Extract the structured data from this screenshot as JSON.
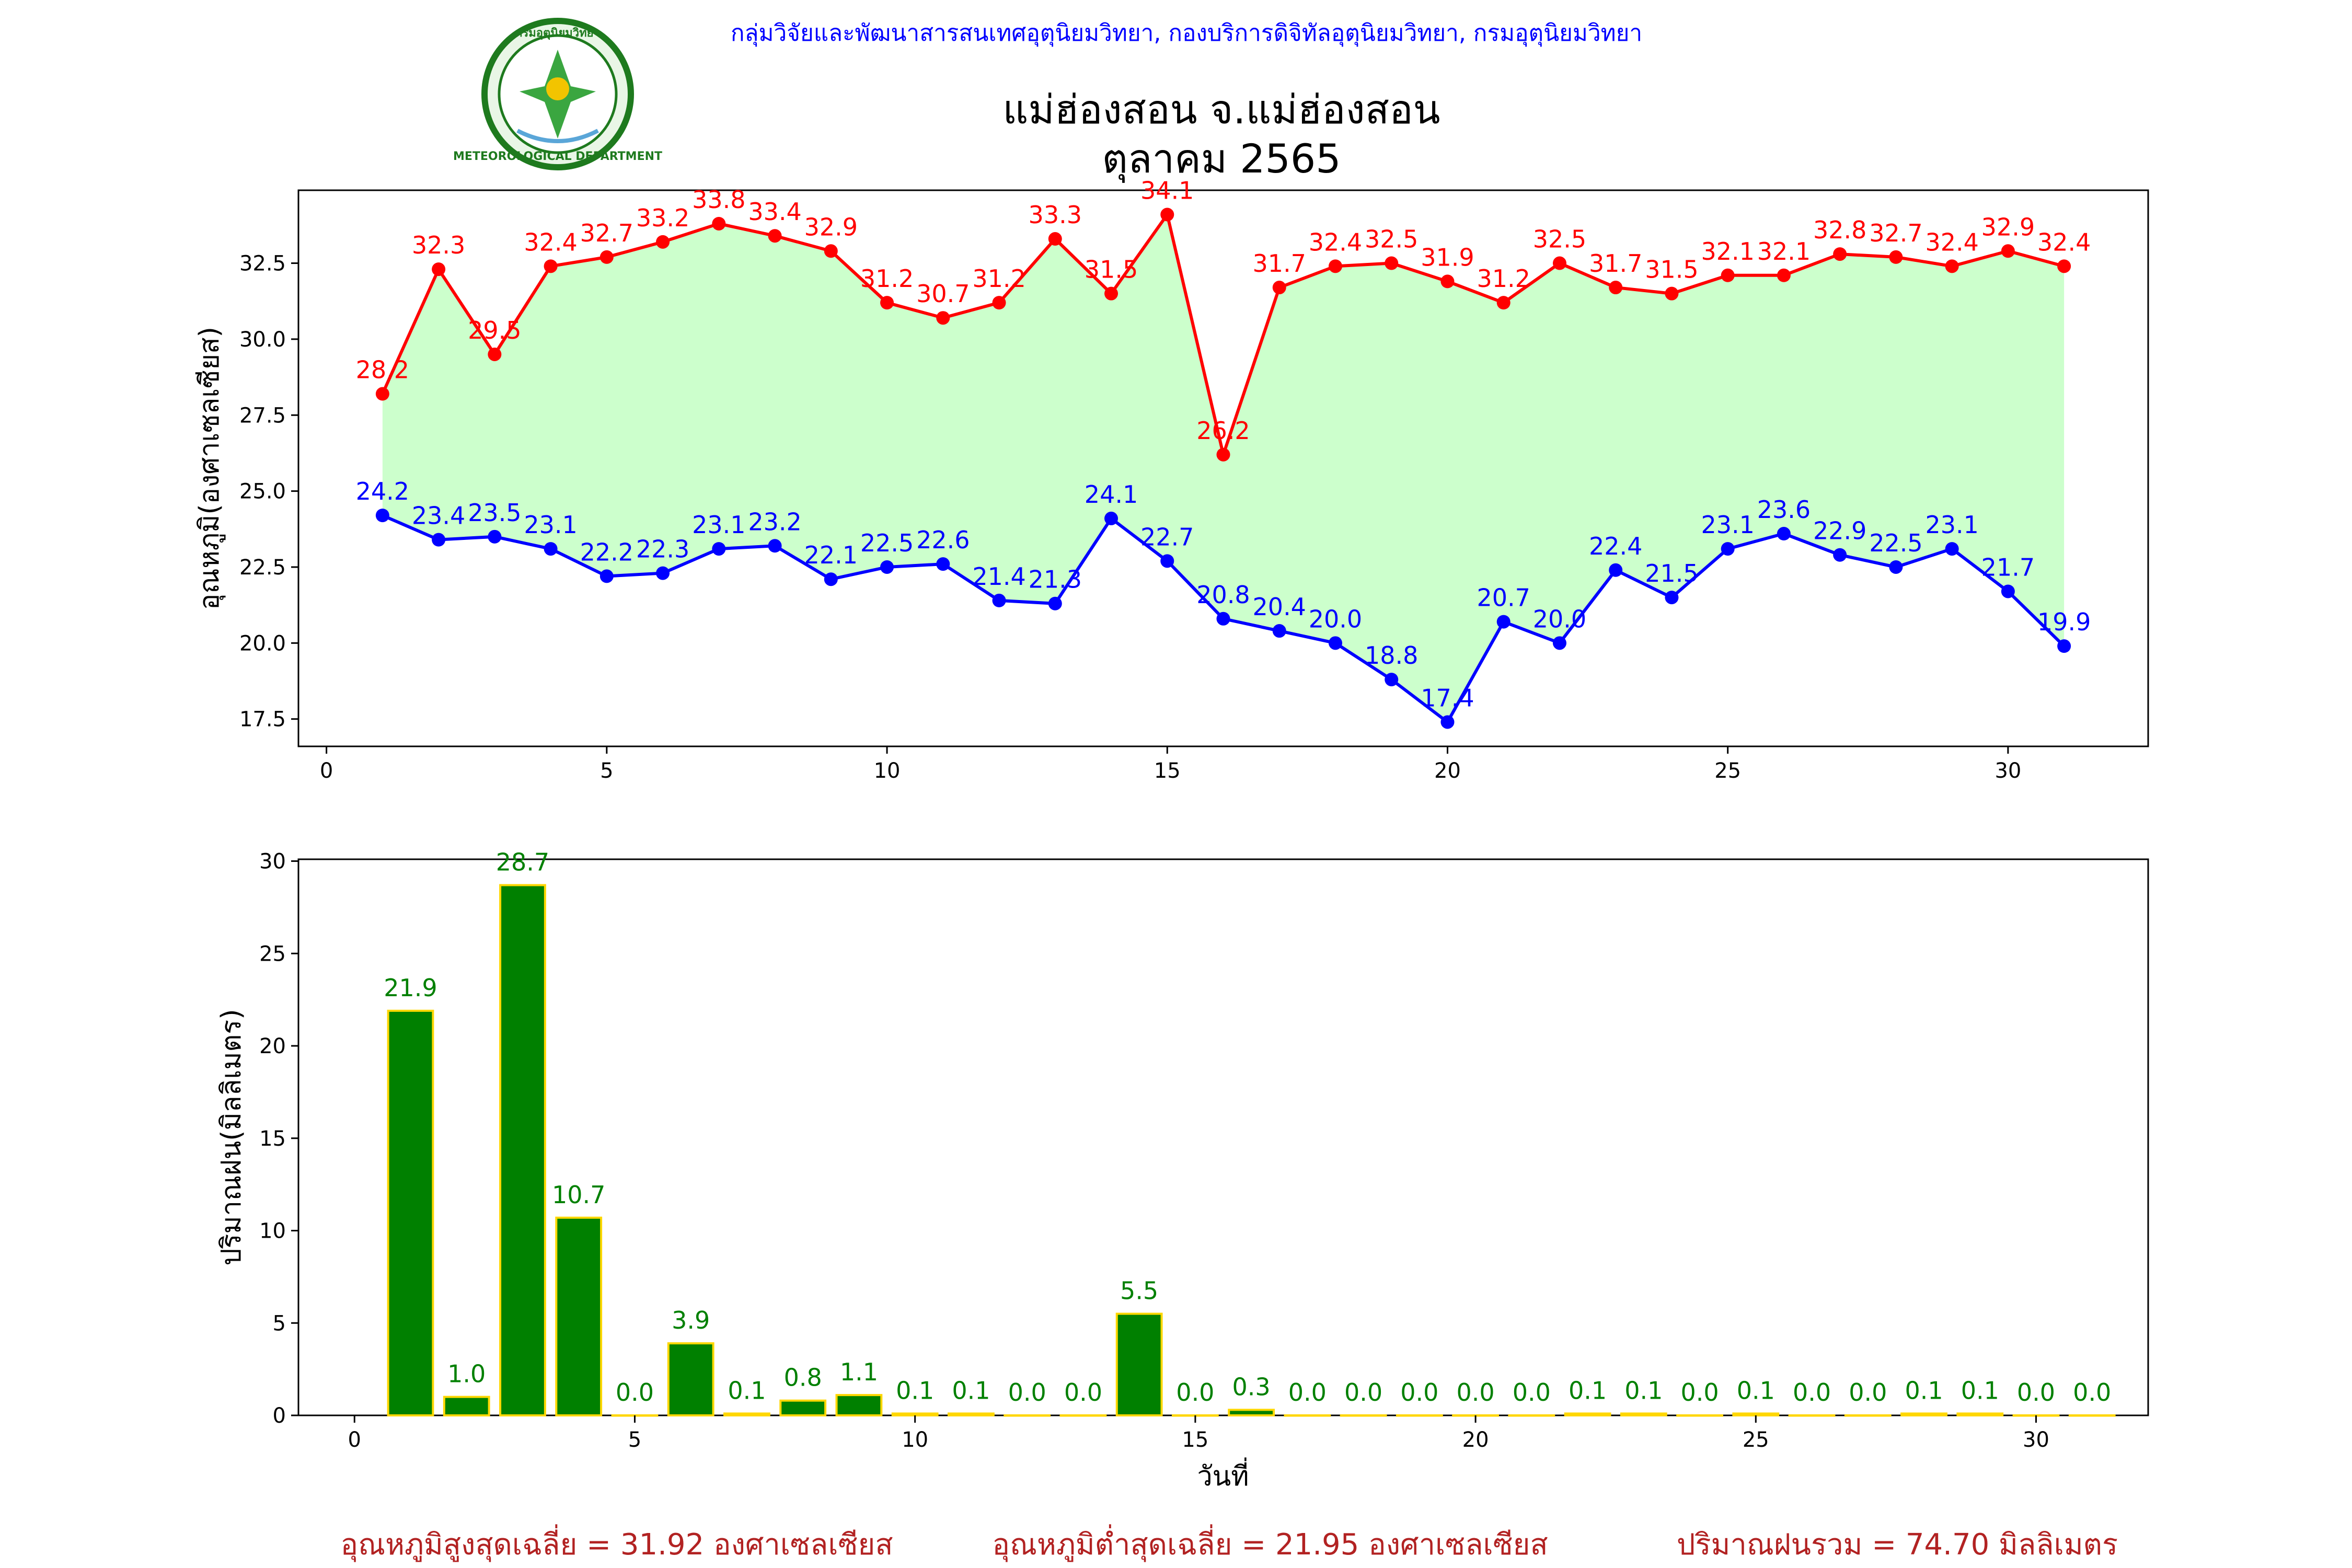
{
  "header": {
    "agency": "กลุ่มวิจัยและพัฒนาสารสนเทศอุตุนิยมวิทยา, กองบริการดิจิทัลอุตุนิยมวิทยา, กรมอุตุนิยมวิทยา",
    "title_line1": "แม่ฮ่องสอน จ.แม่ฮ่องสอน",
    "title_line2": "ตุลาคม 2565",
    "logo_text_top": "กรมอุตุนิยมวิทยา",
    "logo_text_bottom": "METEOROLOGICAL DEPARTMENT"
  },
  "footer": {
    "avg_max": "อุณหภูมิสูงสุดเฉลี่ย = 31.92 องศาเซลเซียส",
    "avg_min": "อุณหภูมิต่ำสุดเฉลี่ย = 21.95 องศาเซลเซียส",
    "total_rain": "ปริมาณฝนรวม = 74.70 มิลลิเมตร"
  },
  "colors": {
    "max_line": "#ff0000",
    "min_line": "#0000ff",
    "fill_between": "#ccffcc",
    "rain_bar": "#008000",
    "rain_bar_edge": "#ffd700",
    "rain_label": "#008000",
    "footer_text": "#b22222"
  },
  "chart_data": [
    {
      "type": "line",
      "ylabel": "อุณหภูมิ(องศาเซลเซียส)",
      "xlabel": "",
      "xlim": [
        -0.5,
        32.5
      ],
      "ylim": [
        16.6,
        34.9
      ],
      "xticks": [
        0,
        5,
        10,
        15,
        20,
        25,
        30
      ],
      "yticks": [
        17.5,
        20.0,
        22.5,
        25.0,
        27.5,
        30.0,
        32.5
      ],
      "x": [
        1,
        2,
        3,
        4,
        5,
        6,
        7,
        8,
        9,
        10,
        11,
        12,
        13,
        14,
        15,
        16,
        17,
        18,
        19,
        20,
        21,
        22,
        23,
        24,
        25,
        26,
        27,
        28,
        29,
        30,
        31
      ],
      "series": [
        {
          "key": "max",
          "values": [
            28.2,
            32.3,
            29.5,
            32.4,
            32.7,
            33.2,
            33.8,
            33.4,
            32.9,
            31.2,
            30.7,
            31.2,
            33.3,
            31.5,
            34.1,
            26.2,
            31.7,
            32.4,
            32.5,
            31.9,
            31.2,
            32.5,
            31.7,
            31.5,
            32.1,
            32.1,
            32.8,
            32.7,
            32.4,
            32.9,
            32.4
          ]
        },
        {
          "key": "min",
          "values": [
            24.2,
            23.4,
            23.5,
            23.1,
            22.2,
            22.3,
            23.1,
            23.2,
            22.1,
            22.5,
            22.6,
            21.4,
            21.3,
            24.1,
            22.7,
            20.8,
            20.4,
            20.0,
            18.8,
            17.4,
            20.7,
            20.0,
            22.4,
            21.5,
            23.1,
            23.6,
            22.9,
            22.5,
            23.1,
            21.7,
            19.9
          ]
        }
      ],
      "grid": false,
      "fill_between": true
    },
    {
      "type": "bar",
      "ylabel": "ปริมาณฝน(มิลลิเมตร)",
      "xlabel": "วันที่",
      "xlim": [
        -1.0,
        32.0
      ],
      "ylim": [
        0,
        30.1
      ],
      "xticks": [
        0,
        5,
        10,
        15,
        20,
        25,
        30
      ],
      "yticks": [
        0,
        5,
        10,
        15,
        20,
        25,
        30
      ],
      "x": [
        1,
        2,
        3,
        4,
        5,
        6,
        7,
        8,
        9,
        10,
        11,
        12,
        13,
        14,
        15,
        16,
        17,
        18,
        19,
        20,
        21,
        22,
        23,
        24,
        25,
        26,
        27,
        28,
        29,
        30,
        31
      ],
      "values": [
        21.9,
        1.0,
        28.7,
        10.7,
        0.0,
        3.9,
        0.1,
        0.8,
        1.1,
        0.1,
        0.1,
        0.0,
        0.0,
        5.5,
        0.0,
        0.3,
        0.0,
        0.0,
        0.0,
        0.0,
        0.0,
        0.1,
        0.1,
        0.0,
        0.1,
        0.0,
        0.0,
        0.1,
        0.1,
        0.0,
        0.0
      ],
      "grid": false
    }
  ]
}
